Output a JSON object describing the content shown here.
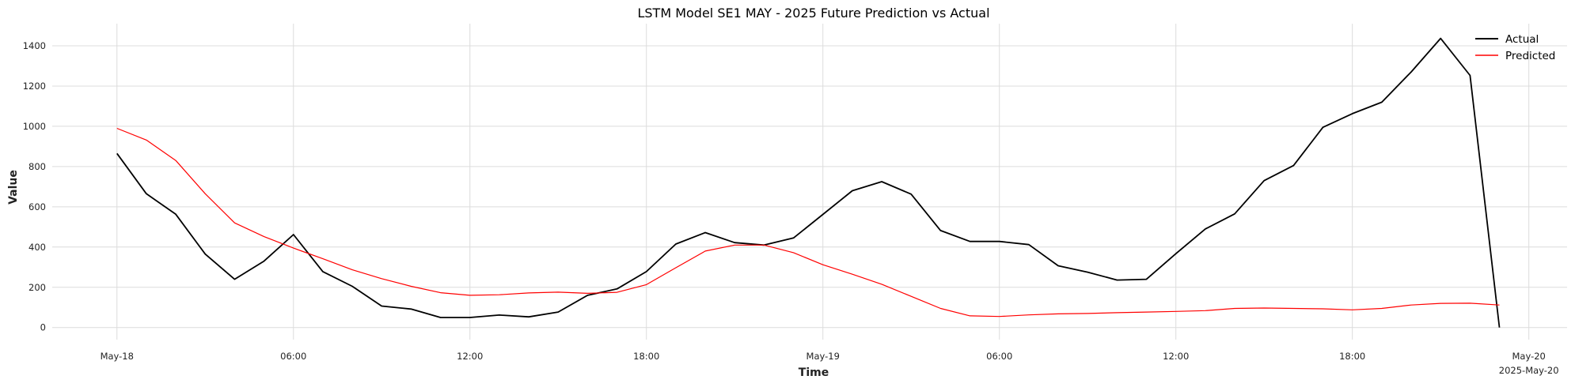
{
  "chart_data": {
    "type": "line",
    "title": "LSTM Model SE1 MAY - 2025 Future Prediction vs Actual",
    "xlabel": "Time",
    "ylabel": "Value",
    "x_unit": "hours since 2025-05-18 00:00",
    "x_range": [
      -2.2,
      49.3
    ],
    "ylim": [
      -60,
      1510
    ],
    "y_ticks": [
      0,
      200,
      400,
      600,
      800,
      1000,
      1200,
      1400
    ],
    "x_ticks": [
      {
        "x": 0,
        "label": "May-18",
        "sub": ""
      },
      {
        "x": 6,
        "label": "06:00",
        "sub": ""
      },
      {
        "x": 12,
        "label": "12:00",
        "sub": ""
      },
      {
        "x": 18,
        "label": "18:00",
        "sub": ""
      },
      {
        "x": 24,
        "label": "May-19",
        "sub": ""
      },
      {
        "x": 30,
        "label": "06:00",
        "sub": ""
      },
      {
        "x": 36,
        "label": "12:00",
        "sub": ""
      },
      {
        "x": 42,
        "label": "18:00",
        "sub": ""
      },
      {
        "x": 48,
        "label": "May-20",
        "sub": "2025-May-20"
      }
    ],
    "grid": true,
    "legend_position": "top-right",
    "series": [
      {
        "name": "Actual",
        "color": "#000000",
        "x": [
          0,
          1,
          2,
          3,
          4,
          5,
          6,
          7,
          8,
          9,
          10,
          11,
          12,
          13,
          14,
          15,
          16,
          17,
          18,
          19,
          20,
          21,
          22,
          23,
          24,
          25,
          26,
          27,
          28,
          29,
          30,
          31,
          32,
          33,
          34,
          35,
          36,
          37,
          38,
          39,
          40,
          41,
          42,
          43,
          44,
          45,
          46,
          47
        ],
        "values": [
          865,
          665,
          563,
          365,
          240,
          330,
          462,
          278,
          205,
          107,
          92,
          50,
          50,
          62,
          53,
          77,
          160,
          192,
          278,
          415,
          472,
          422,
          410,
          445,
          562,
          680,
          725,
          663,
          482,
          428,
          428,
          412,
          307,
          275,
          236,
          240,
          367,
          490,
          565,
          730,
          805,
          995,
          1063,
          1120,
          1270,
          1437,
          1253,
          0
        ]
      },
      {
        "name": "Predicted",
        "color": "#ff0000",
        "x": [
          0,
          1,
          2,
          3,
          4,
          5,
          6,
          7,
          8,
          9,
          10,
          11,
          12,
          13,
          14,
          15,
          16,
          17,
          18,
          19,
          20,
          21,
          22,
          23,
          24,
          25,
          26,
          27,
          28,
          29,
          30,
          31,
          32,
          33,
          34,
          35,
          36,
          37,
          38,
          39,
          40,
          41,
          42,
          43,
          44,
          45,
          46,
          47
        ],
        "values": [
          990,
          932,
          830,
          665,
          520,
          452,
          395,
          342,
          287,
          243,
          205,
          173,
          160,
          163,
          172,
          176,
          170,
          175,
          213,
          297,
          380,
          410,
          410,
          372,
          312,
          265,
          215,
          155,
          95,
          58,
          55,
          63,
          68,
          70,
          74,
          77,
          80,
          84,
          95,
          97,
          95,
          93,
          88,
          95,
          112,
          120,
          121,
          112
        ]
      }
    ]
  }
}
